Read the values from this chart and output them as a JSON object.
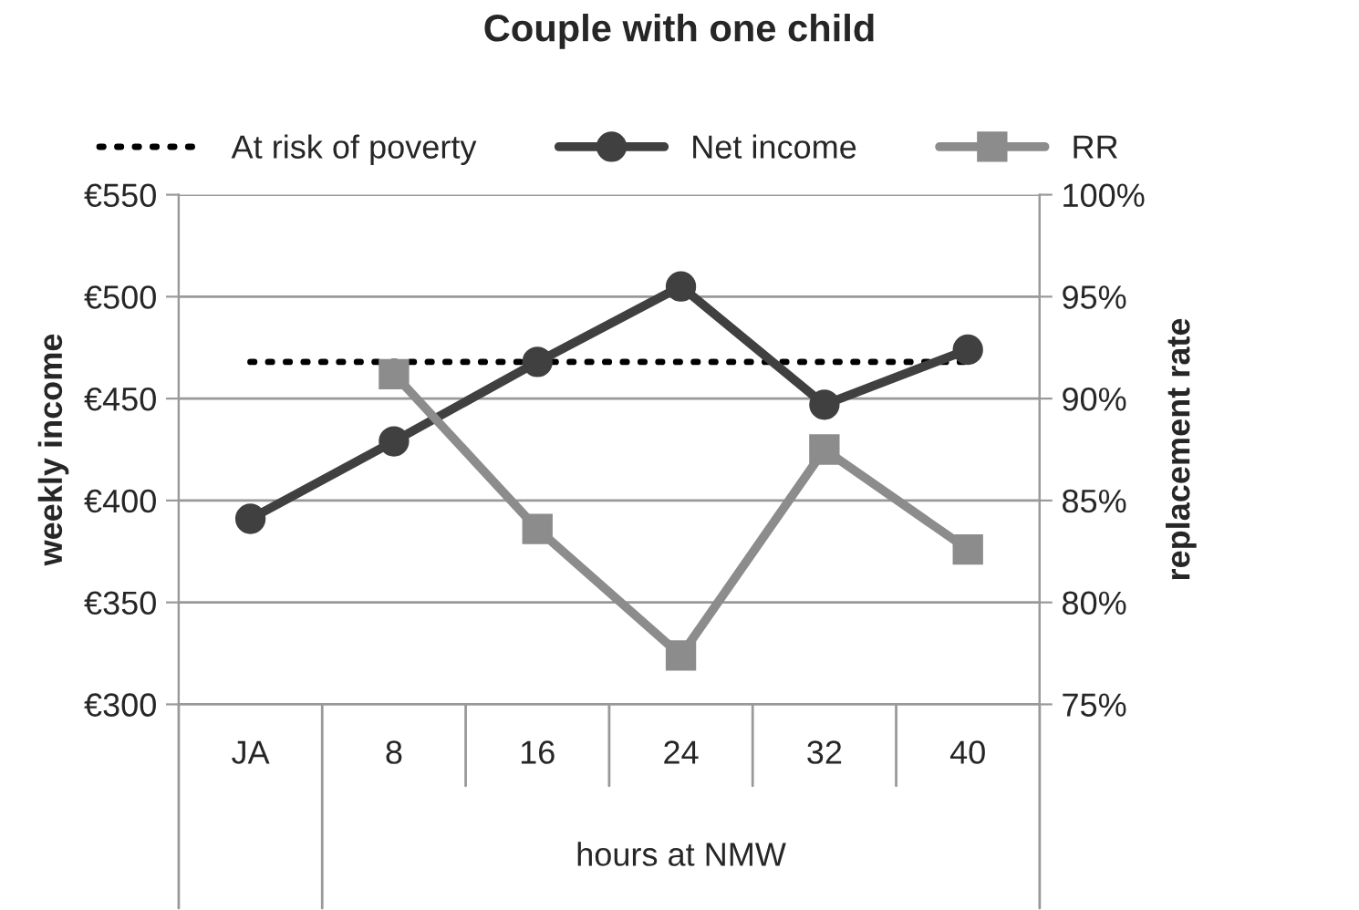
{
  "chart_data": {
    "type": "line",
    "title": "Couple with one child",
    "ylabel": "weekly income",
    "y2label": "replacement rate",
    "xlabel": "hours at NMW",
    "categories": [
      "JA",
      "8",
      "16",
      "24",
      "32",
      "40"
    ],
    "series": [
      {
        "name": "At risk of poverty",
        "color": "#000000",
        "values": [
          468,
          468,
          468,
          468,
          468,
          468
        ],
        "line_style": "dotted",
        "marker": "none"
      },
      {
        "name": "Net income",
        "color": "#404040",
        "values": [
          391,
          429,
          468,
          505,
          447,
          474
        ],
        "line_style": "solid",
        "marker": "circle"
      },
      {
        "name": "RR",
        "color": "#8c8c8c",
        "axis": "y2",
        "values": [
          null,
          91.2,
          83.6,
          77.4,
          87.5,
          82.6
        ],
        "line_style": "solid",
        "marker": "square"
      }
    ],
    "ylim": [
      300,
      550
    ],
    "yticks": [
      {
        "value": 300,
        "label": "€300"
      },
      {
        "value": 350,
        "label": "€350"
      },
      {
        "value": 400,
        "label": "€400"
      },
      {
        "value": 450,
        "label": "€450"
      },
      {
        "value": 500,
        "label": "€500"
      },
      {
        "value": 550,
        "label": "€550"
      }
    ],
    "y2lim": [
      75,
      100
    ],
    "y2ticks": [
      {
        "value": 75,
        "label": "75%"
      },
      {
        "value": 80,
        "label": "80%"
      },
      {
        "value": 85,
        "label": "85%"
      },
      {
        "value": 90,
        "label": "90%"
      },
      {
        "value": 95,
        "label": "95%"
      },
      {
        "value": 100,
        "label": "100%"
      }
    ],
    "grid": "y",
    "legend": "top"
  }
}
